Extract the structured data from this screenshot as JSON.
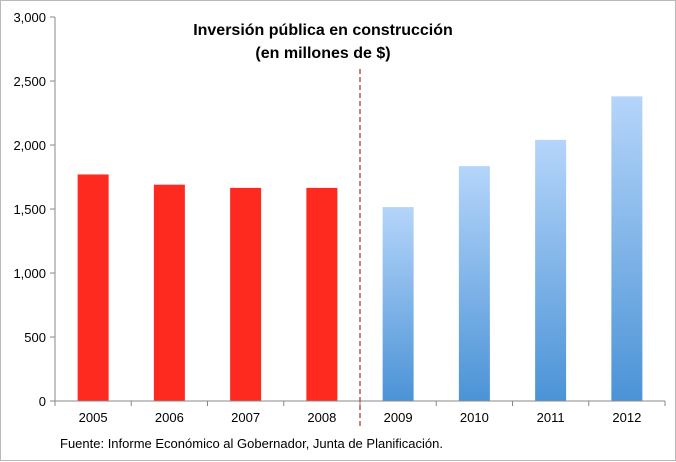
{
  "chart_data": {
    "type": "bar",
    "title_lines": [
      "Inversión pública en construcción",
      "(en millones de $)"
    ],
    "categories": [
      "2005",
      "2006",
      "2007",
      "2008",
      "2009",
      "2010",
      "2011",
      "2012"
    ],
    "values": [
      1770,
      1690,
      1665,
      1665,
      1515,
      1835,
      2040,
      2380
    ],
    "ylim": [
      0,
      3000
    ],
    "yticks": [
      0,
      500,
      1000,
      1500,
      2000,
      2500,
      3000
    ],
    "ytick_labels": [
      "0",
      "500",
      "1,000",
      "1,500",
      "2,000",
      "2,500",
      "3,000"
    ],
    "grid": false,
    "legend": "none",
    "divider_between": [
      "2008",
      "2009"
    ],
    "colors": {
      "actual": "#ff2a1f",
      "projected_top": "#b5d5fa",
      "projected_bottom": "#4b93d6",
      "divider": "#c0504d",
      "axis": "#888888"
    },
    "source": "Fuente: Informe Económico al Gobernador, Junta de Planificación."
  }
}
